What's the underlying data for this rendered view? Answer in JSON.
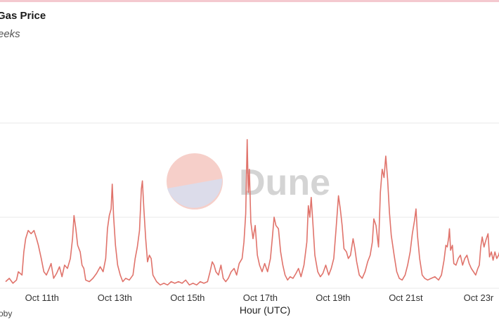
{
  "header": {
    "title": "Gas Price",
    "subtitle": "eeks"
  },
  "footer": {
    "text": "oby"
  },
  "watermark": {
    "text": "Dune"
  },
  "colors": {
    "line": "#e0736b",
    "grid": "#e9e9e9",
    "logo_top": "#f6cfc9",
    "logo_bottom": "#dcdcea"
  },
  "chart_data": {
    "type": "line",
    "xlabel": "Hour (UTC)",
    "ylabel": "",
    "grid": true,
    "x_ticks": [
      "Oct 11th",
      "Oct 13th",
      "Oct 15th",
      "Oct 17th",
      "Oct 19th",
      "Oct 21st",
      "Oct 23r"
    ],
    "x_range_days": [
      10.0,
      23.6
    ],
    "ylim": [
      0,
      100
    ],
    "series": [
      {
        "values": [
          [
            10.0,
            4
          ],
          [
            10.1,
            6
          ],
          [
            10.2,
            3
          ],
          [
            10.3,
            5
          ],
          [
            10.35,
            10
          ],
          [
            10.45,
            8
          ],
          [
            10.5,
            22
          ],
          [
            10.55,
            30
          ],
          [
            10.62,
            35
          ],
          [
            10.7,
            33
          ],
          [
            10.78,
            35
          ],
          [
            10.85,
            30
          ],
          [
            10.9,
            26
          ],
          [
            10.98,
            18
          ],
          [
            11.05,
            10
          ],
          [
            11.12,
            8
          ],
          [
            11.18,
            11
          ],
          [
            11.25,
            15
          ],
          [
            11.32,
            6
          ],
          [
            11.4,
            9
          ],
          [
            11.48,
            13
          ],
          [
            11.55,
            7
          ],
          [
            11.62,
            14
          ],
          [
            11.7,
            12
          ],
          [
            11.78,
            18
          ],
          [
            11.84,
            30
          ],
          [
            11.88,
            44
          ],
          [
            11.93,
            36
          ],
          [
            11.98,
            26
          ],
          [
            12.05,
            22
          ],
          [
            12.1,
            14
          ],
          [
            12.15,
            12
          ],
          [
            12.2,
            5
          ],
          [
            12.3,
            4
          ],
          [
            12.4,
            6
          ],
          [
            12.5,
            9
          ],
          [
            12.6,
            13
          ],
          [
            12.68,
            10
          ],
          [
            12.75,
            18
          ],
          [
            12.8,
            36
          ],
          [
            12.85,
            44
          ],
          [
            12.9,
            48
          ],
          [
            12.93,
            63
          ],
          [
            12.97,
            43
          ],
          [
            13.02,
            26
          ],
          [
            13.08,
            14
          ],
          [
            13.15,
            8
          ],
          [
            13.22,
            4
          ],
          [
            13.3,
            6
          ],
          [
            13.4,
            5
          ],
          [
            13.5,
            8
          ],
          [
            13.56,
            18
          ],
          [
            13.62,
            25
          ],
          [
            13.68,
            35
          ],
          [
            13.73,
            60
          ],
          [
            13.76,
            65
          ],
          [
            13.8,
            48
          ],
          [
            13.85,
            30
          ],
          [
            13.9,
            16
          ],
          [
            13.95,
            20
          ],
          [
            14.0,
            18
          ],
          [
            14.05,
            8
          ],
          [
            14.15,
            4
          ],
          [
            14.25,
            2
          ],
          [
            14.35,
            3
          ],
          [
            14.45,
            2
          ],
          [
            14.55,
            4
          ],
          [
            14.65,
            3
          ],
          [
            14.75,
            4
          ],
          [
            14.85,
            3
          ],
          [
            14.95,
            5
          ],
          [
            15.05,
            2
          ],
          [
            15.15,
            3
          ],
          [
            15.25,
            2
          ],
          [
            15.35,
            4
          ],
          [
            15.45,
            3
          ],
          [
            15.55,
            4
          ],
          [
            15.62,
            10
          ],
          [
            15.68,
            16
          ],
          [
            15.73,
            14
          ],
          [
            15.78,
            10
          ],
          [
            15.85,
            8
          ],
          [
            15.92,
            14
          ],
          [
            15.98,
            6
          ],
          [
            16.05,
            4
          ],
          [
            16.12,
            6
          ],
          [
            16.2,
            10
          ],
          [
            16.28,
            12
          ],
          [
            16.35,
            8
          ],
          [
            16.42,
            15
          ],
          [
            16.5,
            18
          ],
          [
            16.55,
            28
          ],
          [
            16.6,
            45
          ],
          [
            16.64,
            90
          ],
          [
            16.67,
            58
          ],
          [
            16.7,
            72
          ],
          [
            16.74,
            40
          ],
          [
            16.8,
            30
          ],
          [
            16.86,
            38
          ],
          [
            16.92,
            20
          ],
          [
            16.98,
            14
          ],
          [
            17.05,
            10
          ],
          [
            17.12,
            15
          ],
          [
            17.2,
            10
          ],
          [
            17.28,
            18
          ],
          [
            17.33,
            30
          ],
          [
            17.38,
            43
          ],
          [
            17.43,
            38
          ],
          [
            17.5,
            36
          ],
          [
            17.56,
            22
          ],
          [
            17.62,
            14
          ],
          [
            17.68,
            8
          ],
          [
            17.75,
            5
          ],
          [
            17.82,
            7
          ],
          [
            17.9,
            6
          ],
          [
            17.98,
            9
          ],
          [
            18.05,
            12
          ],
          [
            18.12,
            7
          ],
          [
            18.2,
            14
          ],
          [
            18.28,
            28
          ],
          [
            18.32,
            50
          ],
          [
            18.36,
            43
          ],
          [
            18.4,
            55
          ],
          [
            18.45,
            38
          ],
          [
            18.5,
            20
          ],
          [
            18.58,
            10
          ],
          [
            18.65,
            7
          ],
          [
            18.72,
            9
          ],
          [
            18.8,
            14
          ],
          [
            18.88,
            8
          ],
          [
            18.95,
            12
          ],
          [
            19.02,
            18
          ],
          [
            19.08,
            35
          ],
          [
            19.15,
            56
          ],
          [
            19.2,
            48
          ],
          [
            19.25,
            38
          ],
          [
            19.3,
            24
          ],
          [
            19.37,
            22
          ],
          [
            19.42,
            18
          ],
          [
            19.48,
            20
          ],
          [
            19.55,
            30
          ],
          [
            19.6,
            24
          ],
          [
            19.65,
            16
          ],
          [
            19.72,
            8
          ],
          [
            19.8,
            6
          ],
          [
            19.88,
            10
          ],
          [
            19.95,
            16
          ],
          [
            20.02,
            20
          ],
          [
            20.08,
            28
          ],
          [
            20.12,
            42
          ],
          [
            20.18,
            38
          ],
          [
            20.25,
            25
          ],
          [
            20.3,
            58
          ],
          [
            20.35,
            72
          ],
          [
            20.4,
            67
          ],
          [
            20.45,
            80
          ],
          [
            20.5,
            66
          ],
          [
            20.55,
            46
          ],
          [
            20.6,
            32
          ],
          [
            20.68,
            20
          ],
          [
            20.75,
            10
          ],
          [
            20.82,
            6
          ],
          [
            20.9,
            5
          ],
          [
            20.98,
            8
          ],
          [
            21.05,
            14
          ],
          [
            21.12,
            22
          ],
          [
            21.18,
            33
          ],
          [
            21.24,
            41
          ],
          [
            21.28,
            48
          ],
          [
            21.32,
            32
          ],
          [
            21.38,
            18
          ],
          [
            21.45,
            8
          ],
          [
            21.52,
            6
          ],
          [
            21.6,
            5
          ],
          [
            21.7,
            6
          ],
          [
            21.8,
            7
          ],
          [
            21.9,
            5
          ],
          [
            21.98,
            8
          ],
          [
            22.05,
            17
          ],
          [
            22.1,
            26
          ],
          [
            22.14,
            25
          ],
          [
            22.18,
            31
          ],
          [
            22.2,
            36
          ],
          [
            22.23,
            23
          ],
          [
            22.28,
            26
          ],
          [
            22.32,
            15
          ],
          [
            22.38,
            14
          ],
          [
            22.44,
            18
          ],
          [
            22.5,
            20
          ],
          [
            22.56,
            14
          ],
          [
            22.62,
            18
          ],
          [
            22.68,
            20
          ],
          [
            22.74,
            15
          ],
          [
            22.8,
            12
          ],
          [
            22.86,
            10
          ],
          [
            22.92,
            8
          ],
          [
            22.98,
            12
          ],
          [
            23.02,
            14
          ],
          [
            23.06,
            25
          ],
          [
            23.1,
            31
          ],
          [
            23.15,
            25
          ],
          [
            23.2,
            29
          ],
          [
            23.26,
            33
          ],
          [
            23.3,
            19
          ],
          [
            23.35,
            22
          ],
          [
            23.4,
            17
          ],
          [
            23.45,
            22
          ],
          [
            23.5,
            18
          ],
          [
            23.55,
            20
          ],
          [
            23.6,
            24
          ]
        ]
      }
    ]
  }
}
